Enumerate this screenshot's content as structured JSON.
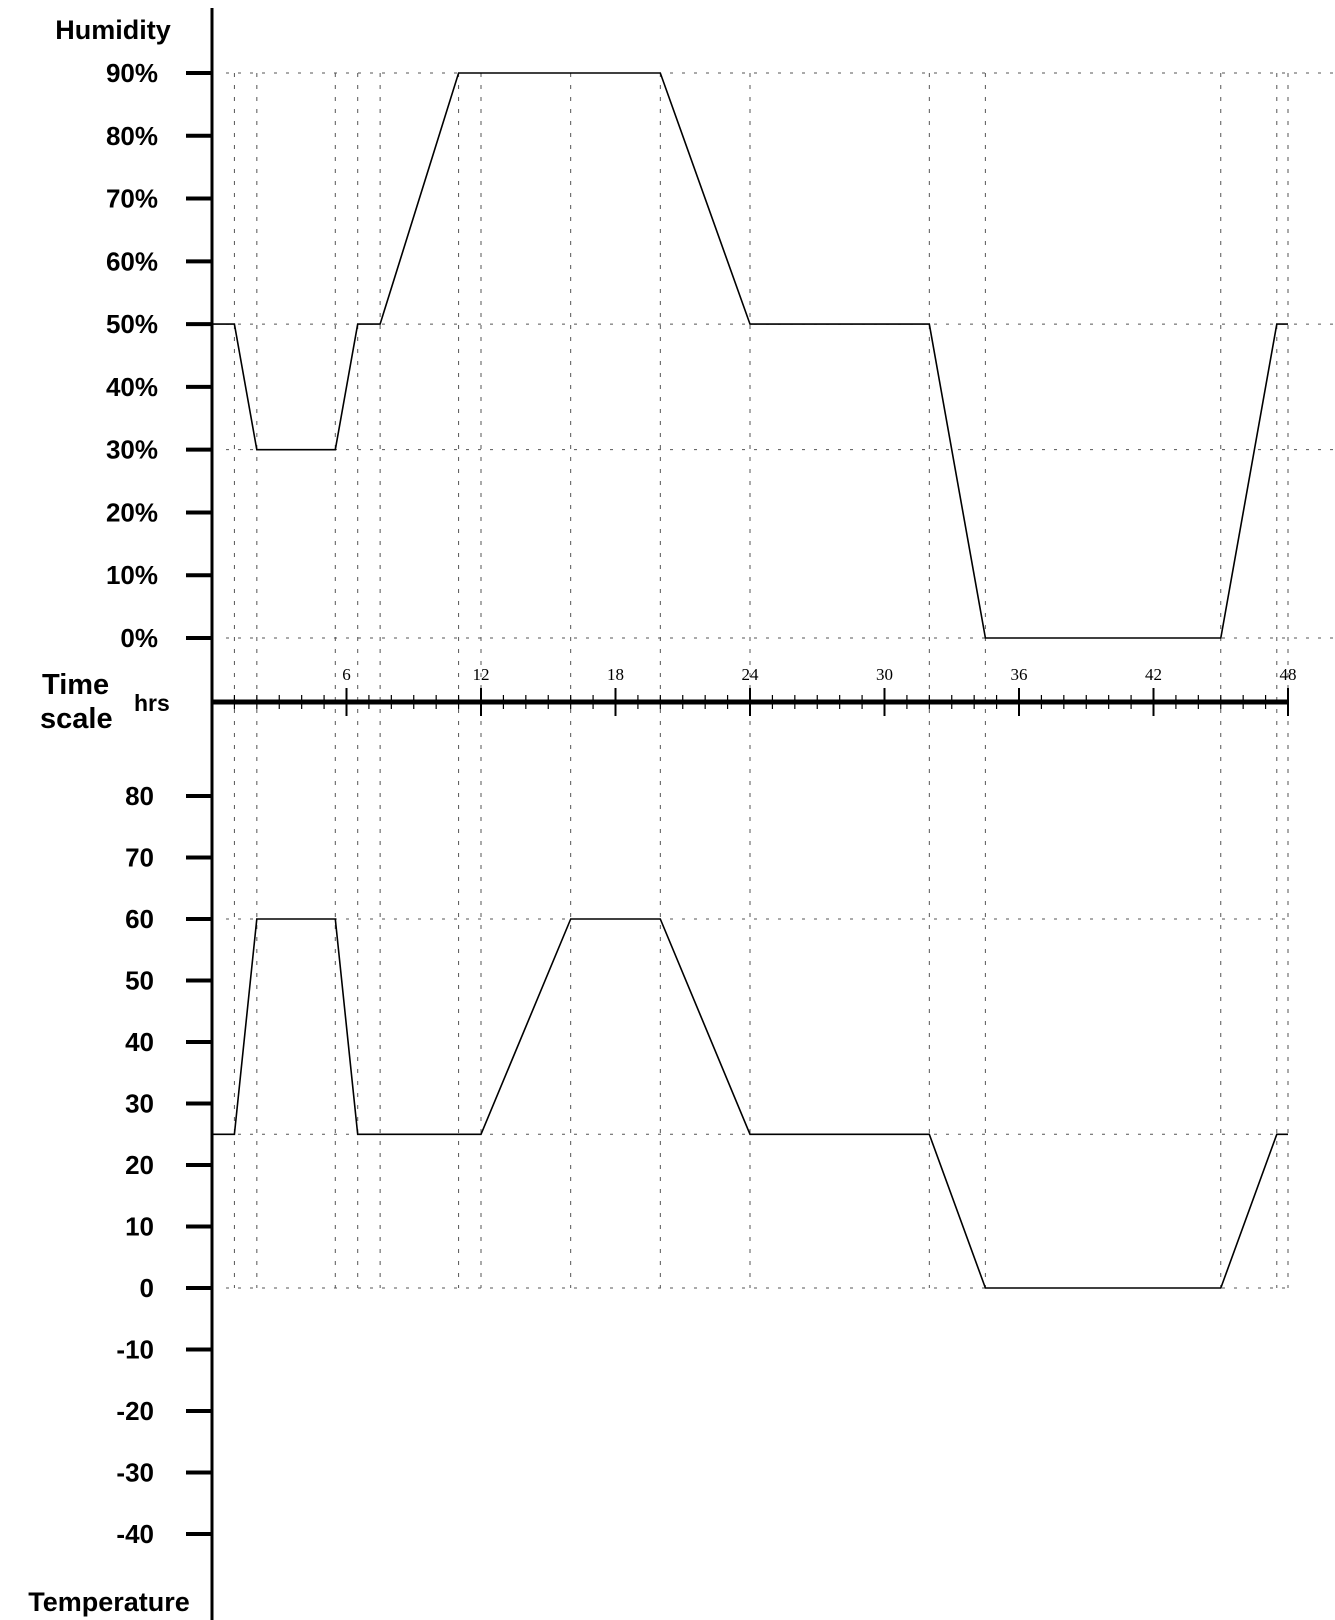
{
  "chart_data": [
    {
      "type": "line",
      "ylabel": "Humidity",
      "y_ticks": [
        "0%",
        "10%",
        "20%",
        "30%",
        "40%",
        "50%",
        "60%",
        "70%",
        "80%",
        "90%"
      ],
      "y_tick_values": [
        0,
        10,
        20,
        30,
        40,
        50,
        60,
        70,
        80,
        90
      ],
      "ylim": [
        0,
        90
      ],
      "x": [
        0,
        1,
        2,
        5.5,
        6.5,
        7.5,
        11,
        12,
        16,
        20,
        24,
        32,
        34.5,
        45,
        47.5,
        48
      ],
      "values": [
        50,
        50,
        30,
        30,
        50,
        50,
        90,
        90,
        90,
        90,
        50,
        50,
        0,
        0,
        50,
        50
      ],
      "reference_lines": [
        90,
        50,
        30,
        0
      ],
      "grid": "dotted"
    },
    {
      "type": "line",
      "ylabel": "Temperature",
      "y_ticks": [
        "-40",
        "-30",
        "-20",
        "-10",
        "0",
        "10",
        "20",
        "30",
        "40",
        "50",
        "60",
        "70",
        "80"
      ],
      "y_tick_values": [
        -40,
        -30,
        -20,
        -10,
        0,
        10,
        20,
        30,
        40,
        50,
        60,
        70,
        80
      ],
      "ylim": [
        -40,
        80
      ],
      "x": [
        0,
        1,
        2,
        5.5,
        6.5,
        7.5,
        11,
        12,
        16,
        20,
        24,
        32,
        34.5,
        45,
        47.5,
        48
      ],
      "values": [
        25,
        25,
        60,
        60,
        25,
        25,
        25,
        25,
        60,
        60,
        25,
        25,
        0,
        0,
        25,
        25
      ],
      "reference_lines": [
        60,
        25,
        0
      ],
      "grid": "dotted"
    }
  ],
  "time_axis": {
    "label_line1": "Time",
    "label_line2": "scale",
    "unit": "hrs",
    "ticks": [
      "6",
      "12",
      "18",
      "24",
      "30",
      "36",
      "42",
      "48"
    ],
    "tick_values": [
      6,
      12,
      18,
      24,
      30,
      36,
      42,
      48
    ],
    "range": [
      0,
      48
    ]
  }
}
